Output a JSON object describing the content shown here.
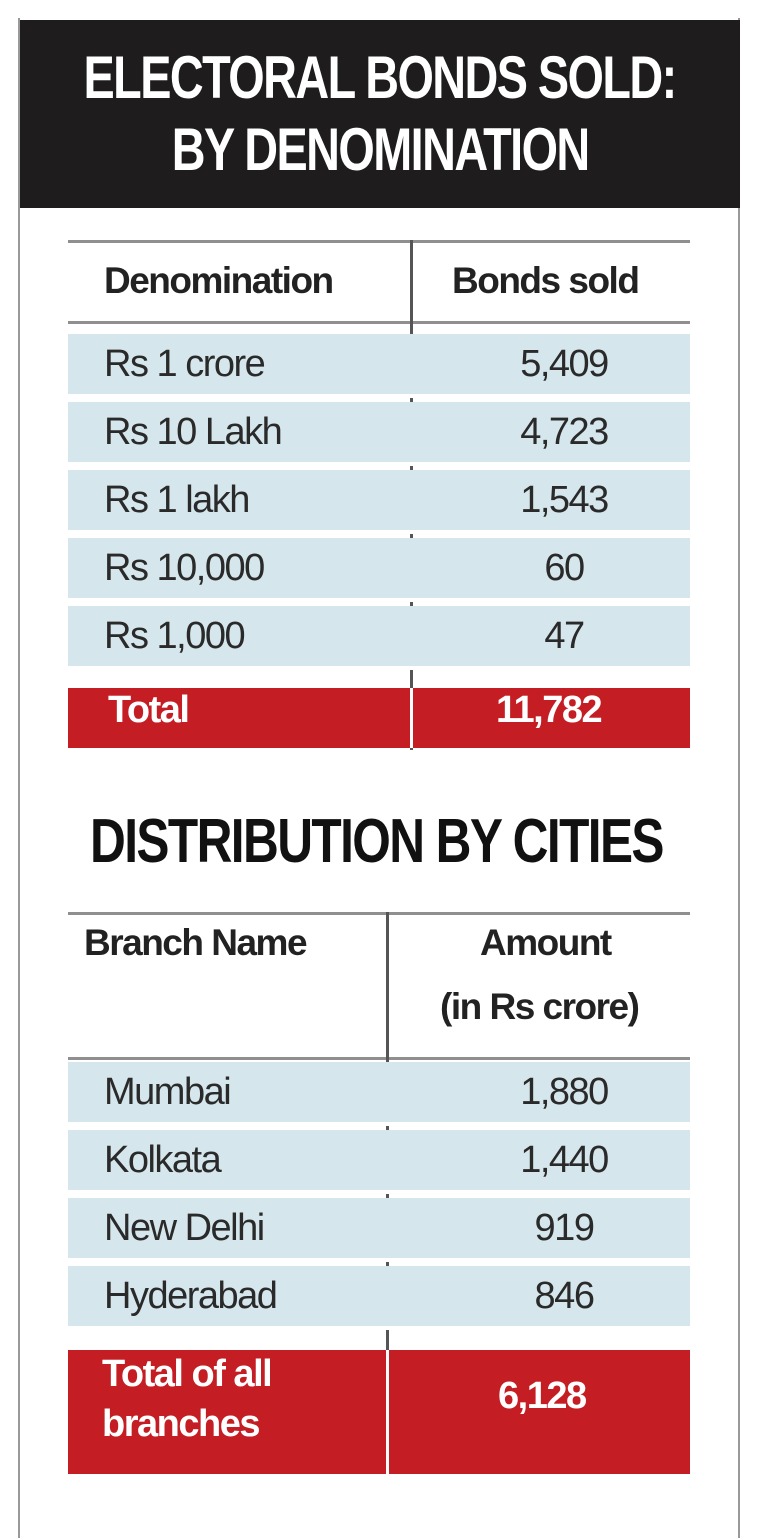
{
  "title": {
    "line1": "ELECTORAL BONDS SOLD:",
    "line2": "BY DENOMINATION"
  },
  "table1": {
    "col1": "Denomination",
    "col2": "Bonds sold",
    "rows": [
      {
        "label": "Rs 1 crore",
        "value": "5,409"
      },
      {
        "label": "Rs 10 Lakh",
        "value": "4,723"
      },
      {
        "label": "Rs 1 lakh",
        "value": "1,543"
      },
      {
        "label": "Rs 10,000",
        "value": "60"
      },
      {
        "label": "Rs 1,000",
        "value": "47"
      }
    ],
    "total_label": "Total",
    "total_value": "11,782"
  },
  "section2_title": "DISTRIBUTION BY CITIES",
  "table2": {
    "col1": "Branch Name",
    "col2_line1": "Amount",
    "col2_line2": "(in Rs crore)",
    "rows": [
      {
        "label": "Mumbai",
        "value": "1,880"
      },
      {
        "label": "Kolkata",
        "value": "1,440"
      },
      {
        "label": "New Delhi",
        "value": "919"
      },
      {
        "label": "Hyderabad",
        "value": "846"
      }
    ],
    "total_label_line1": "Total of all",
    "total_label_line2": "branches",
    "total_value": "6,128"
  },
  "colors": {
    "title_bg": "#1e1c1c",
    "row_bg": "#d5e6ec",
    "total_bg": "#c41e24"
  },
  "chart_data": [
    {
      "type": "table",
      "title": "ELECTORAL BONDS SOLD: BY DENOMINATION",
      "columns": [
        "Denomination",
        "Bonds sold"
      ],
      "categories": [
        "Rs 1 crore",
        "Rs 10 Lakh",
        "Rs 1 lakh",
        "Rs 10,000",
        "Rs 1,000"
      ],
      "values": [
        5409,
        4723,
        1543,
        60,
        47
      ],
      "total": 11782
    },
    {
      "type": "table",
      "title": "DISTRIBUTION BY CITIES",
      "columns": [
        "Branch Name",
        "Amount (in Rs crore)"
      ],
      "categories": [
        "Mumbai",
        "Kolkata",
        "New Delhi",
        "Hyderabad"
      ],
      "values": [
        1880,
        1440,
        919,
        846
      ],
      "total": 6128
    }
  ]
}
